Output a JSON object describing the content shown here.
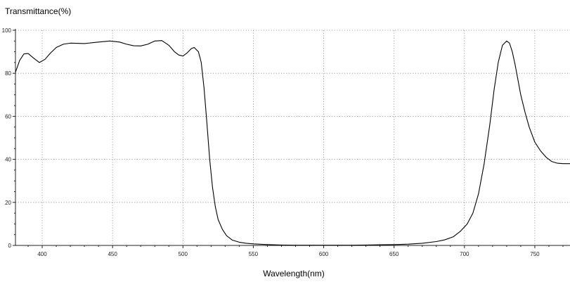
{
  "chart_data": {
    "type": "line",
    "title": "",
    "ylabel": "Transmittance(%)",
    "xlabel": "Wavelength(nm)",
    "xlim": [
      381,
      775
    ],
    "ylim": [
      0,
      100
    ],
    "x_ticks": [
      400,
      450,
      500,
      550,
      600,
      650,
      700,
      750
    ],
    "y_ticks": [
      0,
      20,
      40,
      60,
      80,
      100
    ],
    "grid": true,
    "colors": {
      "line": "#000000",
      "grid": "#8a8a8a",
      "axis": "#222222"
    },
    "series": [
      {
        "x": [
          381,
          384,
          387,
          390,
          394,
          398,
          402,
          406,
          410,
          415,
          420,
          430,
          440,
          448,
          455,
          460,
          465,
          470,
          475,
          480,
          485,
          490,
          494,
          497,
          500,
          503,
          506,
          508,
          511,
          513,
          515,
          517,
          519,
          521,
          523,
          525,
          528,
          531,
          535,
          540,
          545,
          550,
          560,
          570,
          580,
          590,
          600,
          610,
          620,
          630,
          640,
          650,
          660,
          670,
          680,
          686,
          692,
          697,
          702,
          706,
          710,
          714,
          718,
          721,
          724,
          727,
          730,
          732,
          734,
          736,
          738,
          740,
          743,
          746,
          750,
          754,
          758,
          762,
          766,
          770,
          775
        ],
        "y": [
          80.5,
          86,
          89,
          89.2,
          87,
          85,
          86.5,
          89.5,
          92,
          93.5,
          94,
          93.8,
          94.5,
          95,
          94.5,
          93.5,
          92.8,
          92.7,
          93.5,
          95,
          95.2,
          93,
          90,
          88.5,
          88,
          89.5,
          91.5,
          92,
          90,
          85,
          73,
          57,
          40,
          27,
          18,
          12,
          7.5,
          4.5,
          2.5,
          1.5,
          1,
          0.7,
          0.4,
          0.2,
          0.1,
          0.1,
          0.1,
          0.1,
          0.1,
          0.2,
          0.3,
          0.4,
          0.6,
          1,
          1.8,
          2.6,
          4,
          6.5,
          10,
          15,
          24,
          38,
          56,
          72,
          85,
          93,
          95,
          94,
          90,
          84,
          77,
          70,
          62,
          55,
          48,
          44,
          41,
          39,
          38.2,
          38,
          38
        ]
      }
    ]
  }
}
